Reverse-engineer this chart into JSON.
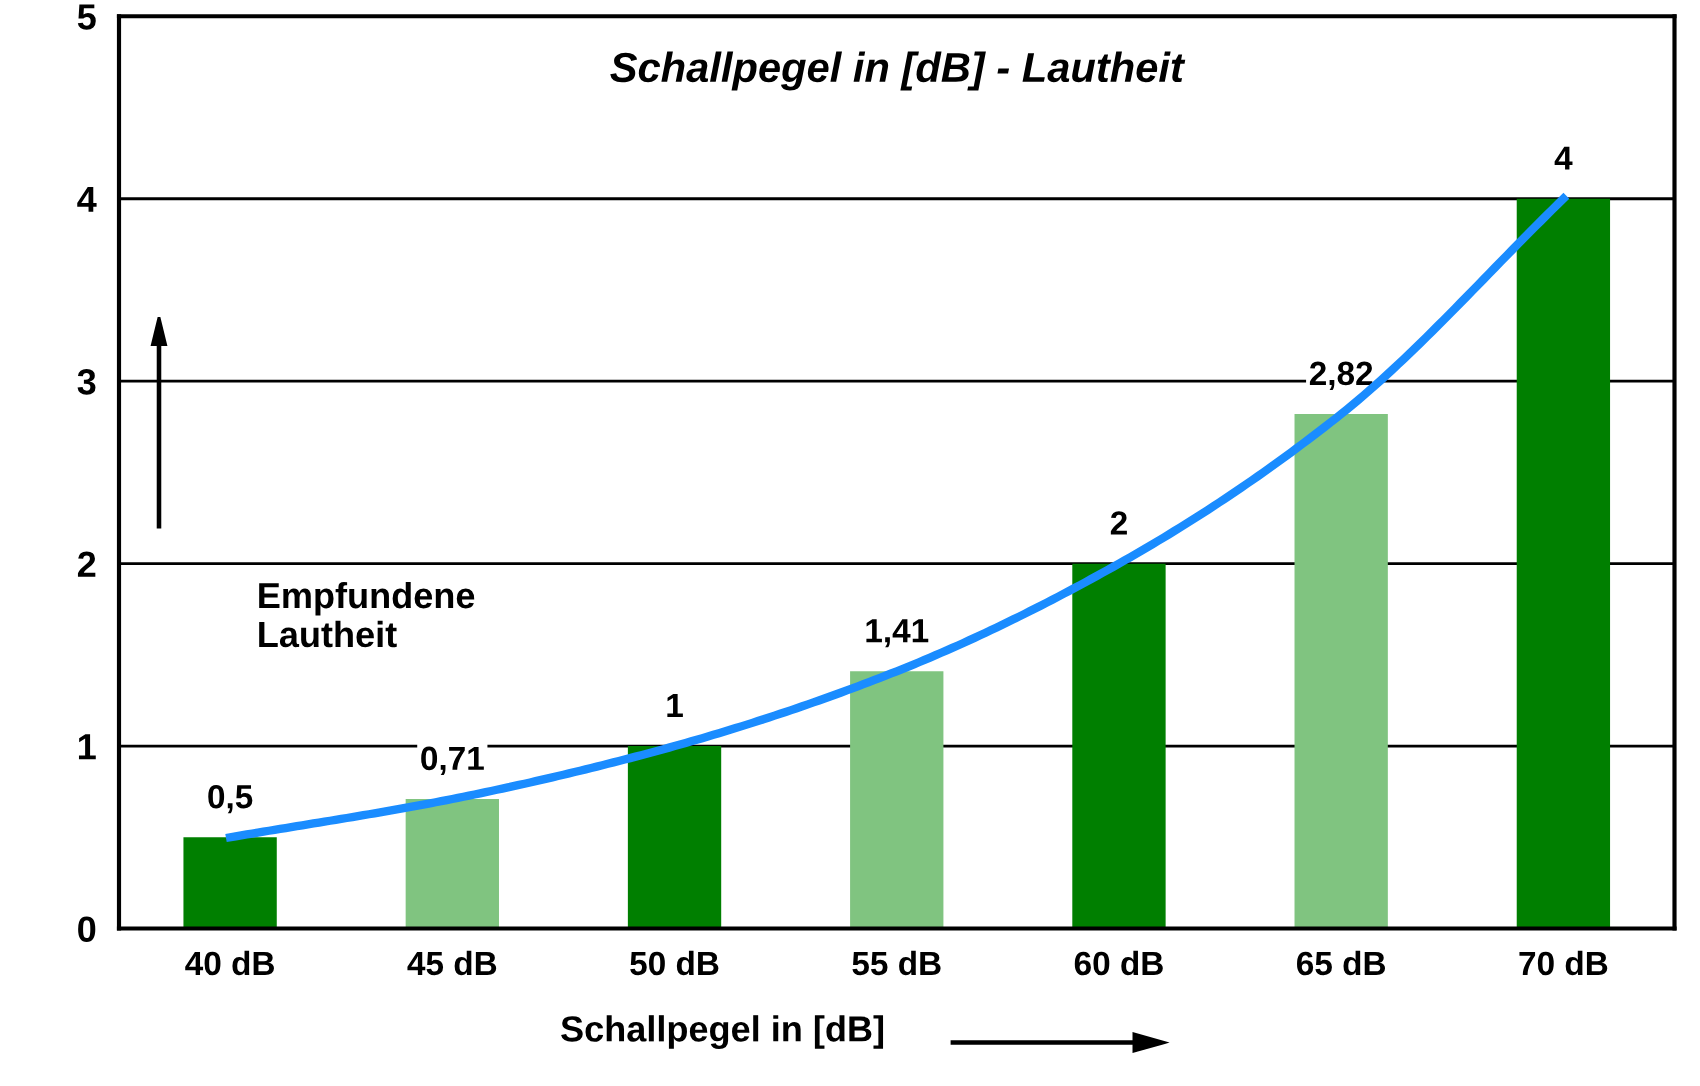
{
  "chart_data": {
    "type": "bar",
    "title": "Schallpegel in [dB] - Lautheit",
    "xlabel": "Schallpegel in [dB]",
    "categories": [
      "40 dB",
      "45 dB",
      "50 dB",
      "55 dB",
      "60 dB",
      "65 dB",
      "70 dB"
    ],
    "series": [
      {
        "values": [
          0.5,
          0.71,
          1,
          1.41,
          2,
          2.82,
          4
        ],
        "colors": [
          "#007f00",
          "#80c480",
          "#007f00",
          "#80c480",
          "#007f00",
          "#80c480",
          "#007f00"
        ]
      },
      {
        "type": "line",
        "values": [
          0.5,
          0.71,
          1,
          1.41,
          2,
          2.82,
          4
        ],
        "color": "#1a8cff"
      }
    ],
    "value_labels": [
      "0,5",
      "0,71",
      "1",
      "1,41",
      "2",
      "2,82",
      "4"
    ],
    "annotations": [
      "Empfundene\nLautheit"
    ],
    "ylim": [
      0,
      5
    ],
    "yticks": [
      0,
      1,
      2,
      3,
      4,
      5
    ],
    "grid": "y",
    "legend": false,
    "marker": "none",
    "line_style": "solid"
  }
}
